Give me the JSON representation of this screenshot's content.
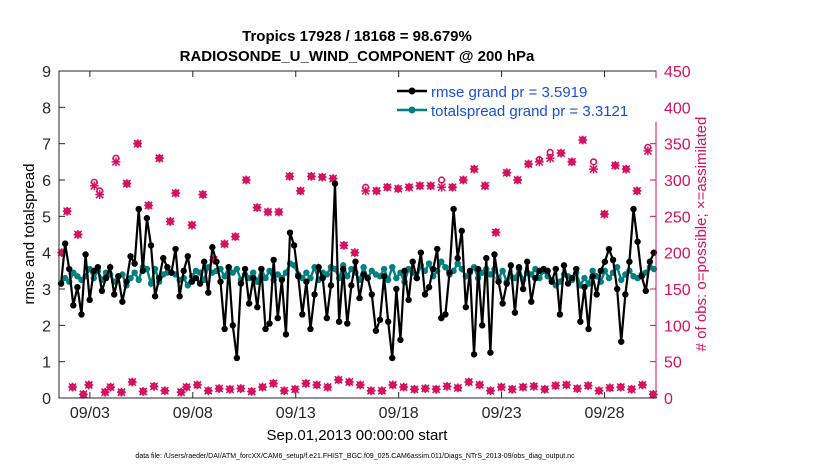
{
  "chart_data": {
    "type": "line",
    "title_line1": "Tropics 17928 / 18168 = 98.679%",
    "title_line2": "RADIOSONDE_U_WIND_COMPONENT @ 200 hPa",
    "xlabel": "Sep.01,2013 00:00:00 start",
    "ylabel_left": "rmse and totalspread",
    "ylabel_right": "# of obs: o=possible; ×=assimilated",
    "footer": "data file: /Users/raeder/DAI/ATM_forcXX/CAM6_setup/f.e21.FHIST_BGC.f09_025.CAM6assim.011/Diags_NTrS_2013-09/obs_diag_output.nc",
    "x_start_day": 1.5,
    "x_end_day": 30.5,
    "x_ticks": [
      {
        "day": 3,
        "label": "09/03"
      },
      {
        "day": 8,
        "label": "09/08"
      },
      {
        "day": 13,
        "label": "09/13"
      },
      {
        "day": 18,
        "label": "09/18"
      },
      {
        "day": 23,
        "label": "09/23"
      },
      {
        "day": 28,
        "label": "09/28"
      }
    ],
    "ylim_left": [
      0,
      9
    ],
    "yticks_left": [
      "0",
      "1",
      "2",
      "3",
      "4",
      "5",
      "6",
      "7",
      "8",
      "9"
    ],
    "ylim_right": [
      0,
      450
    ],
    "yticks_right": [
      "0",
      "50",
      "100",
      "150",
      "200",
      "250",
      "300",
      "350",
      "400",
      "450"
    ],
    "legend": [
      {
        "label": "rmse grand pr = 3.5919",
        "color": "#000000"
      },
      {
        "label": "totalspread grand pr = 3.3121",
        "color": "#008080"
      }
    ],
    "colors": {
      "rmse": "#000000",
      "spread": "#008080",
      "obs": "#d6105f",
      "legend_text": "#1a4fd6"
    },
    "series": [
      {
        "name": "rmse",
        "values": [
          3.15,
          4.25,
          3.55,
          2.55,
          3.05,
          2.3,
          3.95,
          2.7,
          3.5,
          3.6,
          2.95,
          3.3,
          3.6,
          2.85,
          3.35,
          2.65,
          3.2,
          3.9,
          3.7,
          5.2,
          3.5,
          4.95,
          4.2,
          2.8,
          3.3,
          3.85,
          3.6,
          3.45,
          4.1,
          2.8,
          3.5,
          3.9,
          3.2,
          3.3,
          3.15,
          3.75,
          2.9,
          4.15,
          3.75,
          3.2,
          1.9,
          3.6,
          2.0,
          1.1,
          3.15,
          3.55,
          2.6,
          3.3,
          2.5,
          3.55,
          1.9,
          2.05,
          3.8,
          2.2,
          3.25,
          1.75,
          4.55,
          4.2,
          3.35,
          2.3,
          3.2,
          1.9,
          2.85,
          3.6,
          3.3,
          2.2,
          3.1,
          5.9,
          2.1,
          3.55,
          2.05,
          3.1,
          3.75,
          2.75,
          3.4,
          3.3,
          2.85,
          1.85,
          2.15,
          3.35,
          2.1,
          1.1,
          3.0,
          1.6,
          3.5,
          2.7,
          3.75,
          3.3,
          4.0,
          2.85,
          3.05,
          3.55,
          4.1,
          2.2,
          2.3,
          3.45,
          5.2,
          3.85,
          4.6,
          2.5,
          3.5,
          1.2,
          3.55,
          2.0,
          3.85,
          1.25,
          3.95,
          3.2,
          2.6,
          3.15,
          3.65,
          2.35,
          3.6,
          3.0,
          3.75,
          2.65,
          3.3,
          3.5,
          3.55,
          3.5,
          3.2,
          3.55,
          2.3,
          3.65,
          3.15,
          3.3,
          3.55,
          2.1,
          3.05,
          1.9,
          3.35,
          2.85,
          3.5,
          3.75,
          4.1,
          3.8,
          3.0,
          1.55,
          2.85,
          3.75,
          5.2,
          4.3,
          3.35,
          2.95,
          3.75,
          4.0
        ]
      },
      {
        "name": "totalspread",
        "values": [
          3.15,
          3.3,
          3.2,
          3.45,
          3.35,
          3.25,
          3.35,
          3.55,
          3.3,
          3.5,
          3.25,
          3.45,
          3.4,
          3.2,
          3.35,
          3.4,
          3.1,
          3.3,
          3.45,
          3.25,
          3.6,
          3.55,
          3.15,
          3.55,
          3.2,
          3.4,
          3.45,
          3.45,
          3.4,
          3.25,
          3.3,
          3.1,
          3.35,
          3.5,
          3.45,
          3.25,
          3.6,
          3.45,
          3.5,
          3.55,
          3.35,
          3.6,
          3.45,
          3.55,
          3.25,
          3.4,
          3.3,
          3.45,
          3.2,
          3.55,
          3.3,
          3.5,
          3.25,
          3.4,
          3.3,
          3.45,
          3.7,
          3.65,
          3.4,
          3.3,
          3.45,
          3.3,
          3.6,
          3.25,
          3.45,
          3.4,
          3.6,
          3.55,
          3.3,
          3.65,
          3.35,
          3.55,
          3.45,
          3.25,
          3.6,
          3.3,
          3.5,
          3.4,
          3.35,
          3.55,
          3.25,
          3.6,
          3.3,
          3.45,
          3.2,
          3.55,
          3.45,
          3.3,
          3.65,
          3.5,
          3.7,
          3.35,
          3.5,
          3.75,
          3.6,
          3.4,
          3.5,
          3.7,
          3.55,
          3.35,
          3.45,
          3.6,
          3.3,
          3.45,
          3.55,
          3.4,
          3.55,
          3.3,
          3.5,
          3.2,
          3.35,
          3.3,
          3.55,
          3.25,
          3.45,
          3.4,
          3.55,
          3.3,
          3.5,
          3.35,
          3.25,
          3.1,
          3.2,
          3.4,
          3.35,
          3.25,
          3.45,
          3.1,
          3.3,
          3.15,
          3.5,
          3.35,
          3.2,
          3.5,
          3.3,
          3.45,
          3.6,
          3.25,
          3.4,
          3.5,
          3.35,
          3.3,
          3.4,
          3.45,
          3.6,
          3.55
        ]
      },
      {
        "name": "obs_possible",
        "values": [
          200,
          257,
          15,
          225,
          5,
          18,
          297,
          285,
          8,
          15,
          330,
          8,
          295,
          22,
          350,
          9,
          265,
          16,
          330,
          10,
          243,
          282,
          8,
          15,
          238,
          18,
          280,
          10,
          190,
          13,
          212,
          12,
          222,
          13,
          300,
          9,
          262,
          15,
          256,
          20,
          256,
          10,
          305,
          12,
          285,
          20,
          305,
          18,
          304,
          15,
          302,
          25,
          210,
          22,
          200,
          18,
          290,
          10,
          285,
          10,
          290,
          18,
          288,
          15,
          290,
          12,
          292,
          13,
          292,
          12,
          300,
          16,
          290,
          14,
          300,
          22,
          315,
          18,
          292,
          10,
          228,
          15,
          310,
          12,
          300,
          15,
          322,
          16,
          328,
          12,
          338,
          17,
          337,
          18,
          325,
          13,
          355,
          17,
          325,
          10,
          253,
          14,
          320,
          15,
          315,
          12,
          285,
          18,
          345,
          5
        ]
      },
      {
        "name": "obs_assimilated",
        "values": [
          200,
          257,
          15,
          225,
          5,
          18,
          292,
          280,
          8,
          15,
          325,
          8,
          295,
          22,
          350,
          9,
          265,
          16,
          330,
          10,
          243,
          282,
          8,
          15,
          238,
          18,
          280,
          10,
          190,
          13,
          212,
          12,
          222,
          13,
          300,
          9,
          262,
          15,
          256,
          20,
          256,
          10,
          305,
          12,
          285,
          20,
          305,
          18,
          304,
          15,
          302,
          25,
          210,
          22,
          200,
          18,
          285,
          10,
          285,
          10,
          290,
          18,
          288,
          15,
          290,
          12,
          292,
          13,
          292,
          12,
          290,
          16,
          290,
          14,
          300,
          22,
          315,
          18,
          292,
          10,
          228,
          15,
          310,
          12,
          300,
          15,
          322,
          16,
          325,
          12,
          330,
          17,
          337,
          18,
          325,
          13,
          355,
          17,
          315,
          10,
          253,
          14,
          320,
          15,
          315,
          12,
          285,
          18,
          340,
          5
        ]
      }
    ]
  }
}
